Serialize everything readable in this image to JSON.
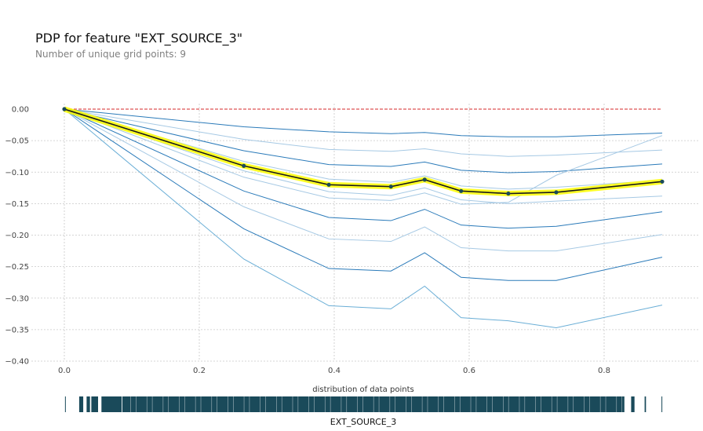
{
  "chart_data": {
    "type": "line",
    "title": "PDP for feature \"EXT_SOURCE_3\"",
    "subtitle": "Number of unique grid points: 9",
    "xlabel": "EXT_SOURCE_3",
    "distribution_label": "distribution of data points",
    "xlim": [
      -0.045,
      0.9
    ],
    "ylim": [
      -0.4,
      0.0
    ],
    "x_ticks": [
      0.0,
      0.2,
      0.4,
      0.6,
      0.8
    ],
    "x_tick_labels": [
      "0.0",
      "0.2",
      "0.4",
      "0.6",
      "0.8"
    ],
    "y_ticks": [
      0.0,
      -0.05,
      -0.1,
      -0.15,
      -0.2,
      -0.25,
      -0.3,
      -0.35,
      -0.4
    ],
    "y_tick_labels": [
      "0.00",
      "−0.05",
      "−0.10",
      "−0.15",
      "−0.20",
      "−0.25",
      "−0.30",
      "−0.35",
      "−0.40"
    ],
    "grid": true,
    "x": [
      0.0,
      0.266,
      0.392,
      0.484,
      0.534,
      0.588,
      0.658,
      0.729,
      0.886
    ],
    "pdp": {
      "values": [
        0.0,
        -0.09,
        -0.12,
        -0.123,
        -0.112,
        -0.13,
        -0.134,
        -0.132,
        -0.115
      ],
      "line_color": "#1a1a1a",
      "band_color": "#ffff00",
      "marker_color": "#1a4a5a"
    },
    "reference_line": {
      "y": 0.0,
      "color": "#d62728",
      "style": "dashed"
    },
    "ice_lines": [
      {
        "values": [
          0.0,
          -0.028,
          -0.036,
          -0.039,
          -0.037,
          -0.042,
          -0.044,
          -0.044,
          -0.038
        ],
        "color": "#2a7ab9"
      },
      {
        "values": [
          0.0,
          -0.048,
          -0.064,
          -0.067,
          -0.063,
          -0.071,
          -0.075,
          -0.073,
          -0.065
        ],
        "color": "#a6c9e4"
      },
      {
        "values": [
          0.0,
          -0.066,
          -0.088,
          -0.091,
          -0.084,
          -0.097,
          -0.101,
          -0.099,
          -0.087
        ],
        "color": "#2a7ab9"
      },
      {
        "values": [
          0.0,
          -0.083,
          -0.111,
          -0.116,
          -0.106,
          -0.122,
          -0.127,
          -0.124,
          -0.113
        ],
        "color": "#a6c9e4"
      },
      {
        "values": [
          0.0,
          -0.098,
          -0.131,
          -0.137,
          -0.125,
          -0.144,
          -0.15,
          -0.146,
          -0.138
        ],
        "color": "#a6c9e4"
      },
      {
        "values": [
          0.0,
          -0.108,
          -0.141,
          -0.145,
          -0.133,
          -0.151,
          -0.148,
          -0.105,
          -0.042
        ],
        "color": "#a6c9e4"
      },
      {
        "values": [
          0.0,
          -0.13,
          -0.172,
          -0.177,
          -0.159,
          -0.184,
          -0.189,
          -0.186,
          -0.163
        ],
        "color": "#2a7ab9"
      },
      {
        "values": [
          0.0,
          -0.155,
          -0.206,
          -0.21,
          -0.187,
          -0.22,
          -0.225,
          -0.225,
          -0.199
        ],
        "color": "#a6c9e4"
      },
      {
        "values": [
          0.0,
          -0.19,
          -0.253,
          -0.257,
          -0.228,
          -0.267,
          -0.272,
          -0.272,
          -0.235
        ],
        "color": "#2a7ab9"
      },
      {
        "values": [
          0.0,
          -0.238,
          -0.312,
          -0.317,
          -0.281,
          -0.331,
          -0.336,
          -0.347,
          -0.311
        ],
        "color": "#6aaed6"
      }
    ],
    "distribution": {
      "color": "#1a4a5a",
      "ranges": [
        [
          0.001,
          0.001
        ],
        [
          0.022,
          0.028
        ],
        [
          0.033,
          0.038
        ],
        [
          0.04,
          0.05
        ],
        [
          0.055,
          0.085
        ],
        [
          0.086,
          0.83
        ],
        [
          0.84,
          0.845
        ],
        [
          0.86,
          0.862
        ],
        [
          0.885,
          0.886
        ]
      ]
    }
  }
}
